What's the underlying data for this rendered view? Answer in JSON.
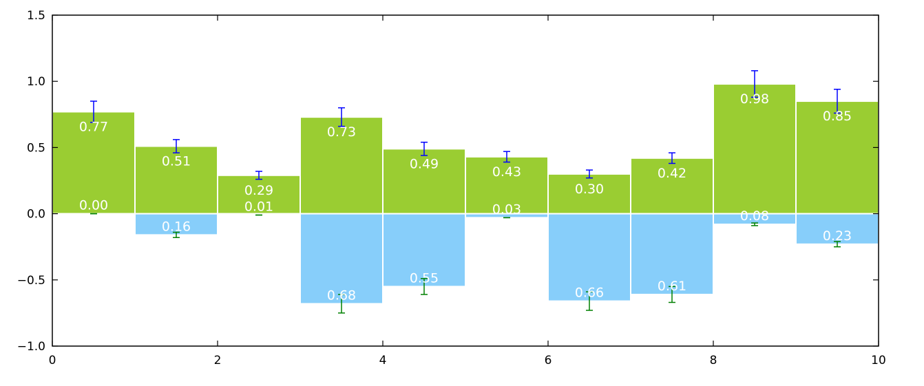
{
  "chart_data": {
    "type": "bar",
    "title": "",
    "xlabel": "",
    "ylabel": "",
    "xlim": [
      0,
      10
    ],
    "ylim": [
      -1.0,
      1.5
    ],
    "x_ticks": [
      0,
      2,
      4,
      6,
      8,
      10
    ],
    "x_tick_labels": [
      "0",
      "2",
      "4",
      "6",
      "8",
      "10"
    ],
    "y_ticks": [
      -1.0,
      -0.5,
      0.0,
      0.5,
      1.0,
      1.5
    ],
    "y_tick_labels": [
      "−1.0",
      "−0.5",
      "0.0",
      "0.5",
      "1.0",
      "1.5"
    ],
    "grid": false,
    "legend": "none",
    "bar_edge_color": "#ffffff",
    "series": [
      {
        "color": "#9acd32",
        "error_color": "#0000ff",
        "x": [
          0,
          1,
          2,
          3,
          4,
          5,
          6,
          7,
          8,
          9
        ],
        "values": [
          0.77,
          0.51,
          0.29,
          0.73,
          0.49,
          0.43,
          0.3,
          0.42,
          0.98,
          0.85
        ],
        "errors": [
          0.08,
          0.05,
          0.03,
          0.07,
          0.05,
          0.04,
          0.03,
          0.04,
          0.1,
          0.09
        ],
        "labels": [
          "0.77",
          "0.51",
          "0.29",
          "0.73",
          "0.49",
          "0.43",
          "0.30",
          "0.42",
          "0.98",
          "0.85"
        ]
      },
      {
        "color": "#87cefa",
        "error_color": "#008000",
        "x": [
          0,
          1,
          2,
          3,
          4,
          5,
          6,
          7,
          8,
          9
        ],
        "values": [
          0.0,
          -0.16,
          -0.01,
          -0.68,
          -0.55,
          -0.03,
          -0.66,
          -0.61,
          -0.08,
          -0.23
        ],
        "errors": [
          0.0,
          0.02,
          0.0,
          0.07,
          0.06,
          0.0,
          0.07,
          0.06,
          0.01,
          0.02
        ],
        "labels": [
          "0.00",
          "0.16",
          "0.01",
          "0.68",
          "0.55",
          "0.03",
          "0.66",
          "0.61",
          "0.08",
          "0.23"
        ]
      }
    ]
  }
}
